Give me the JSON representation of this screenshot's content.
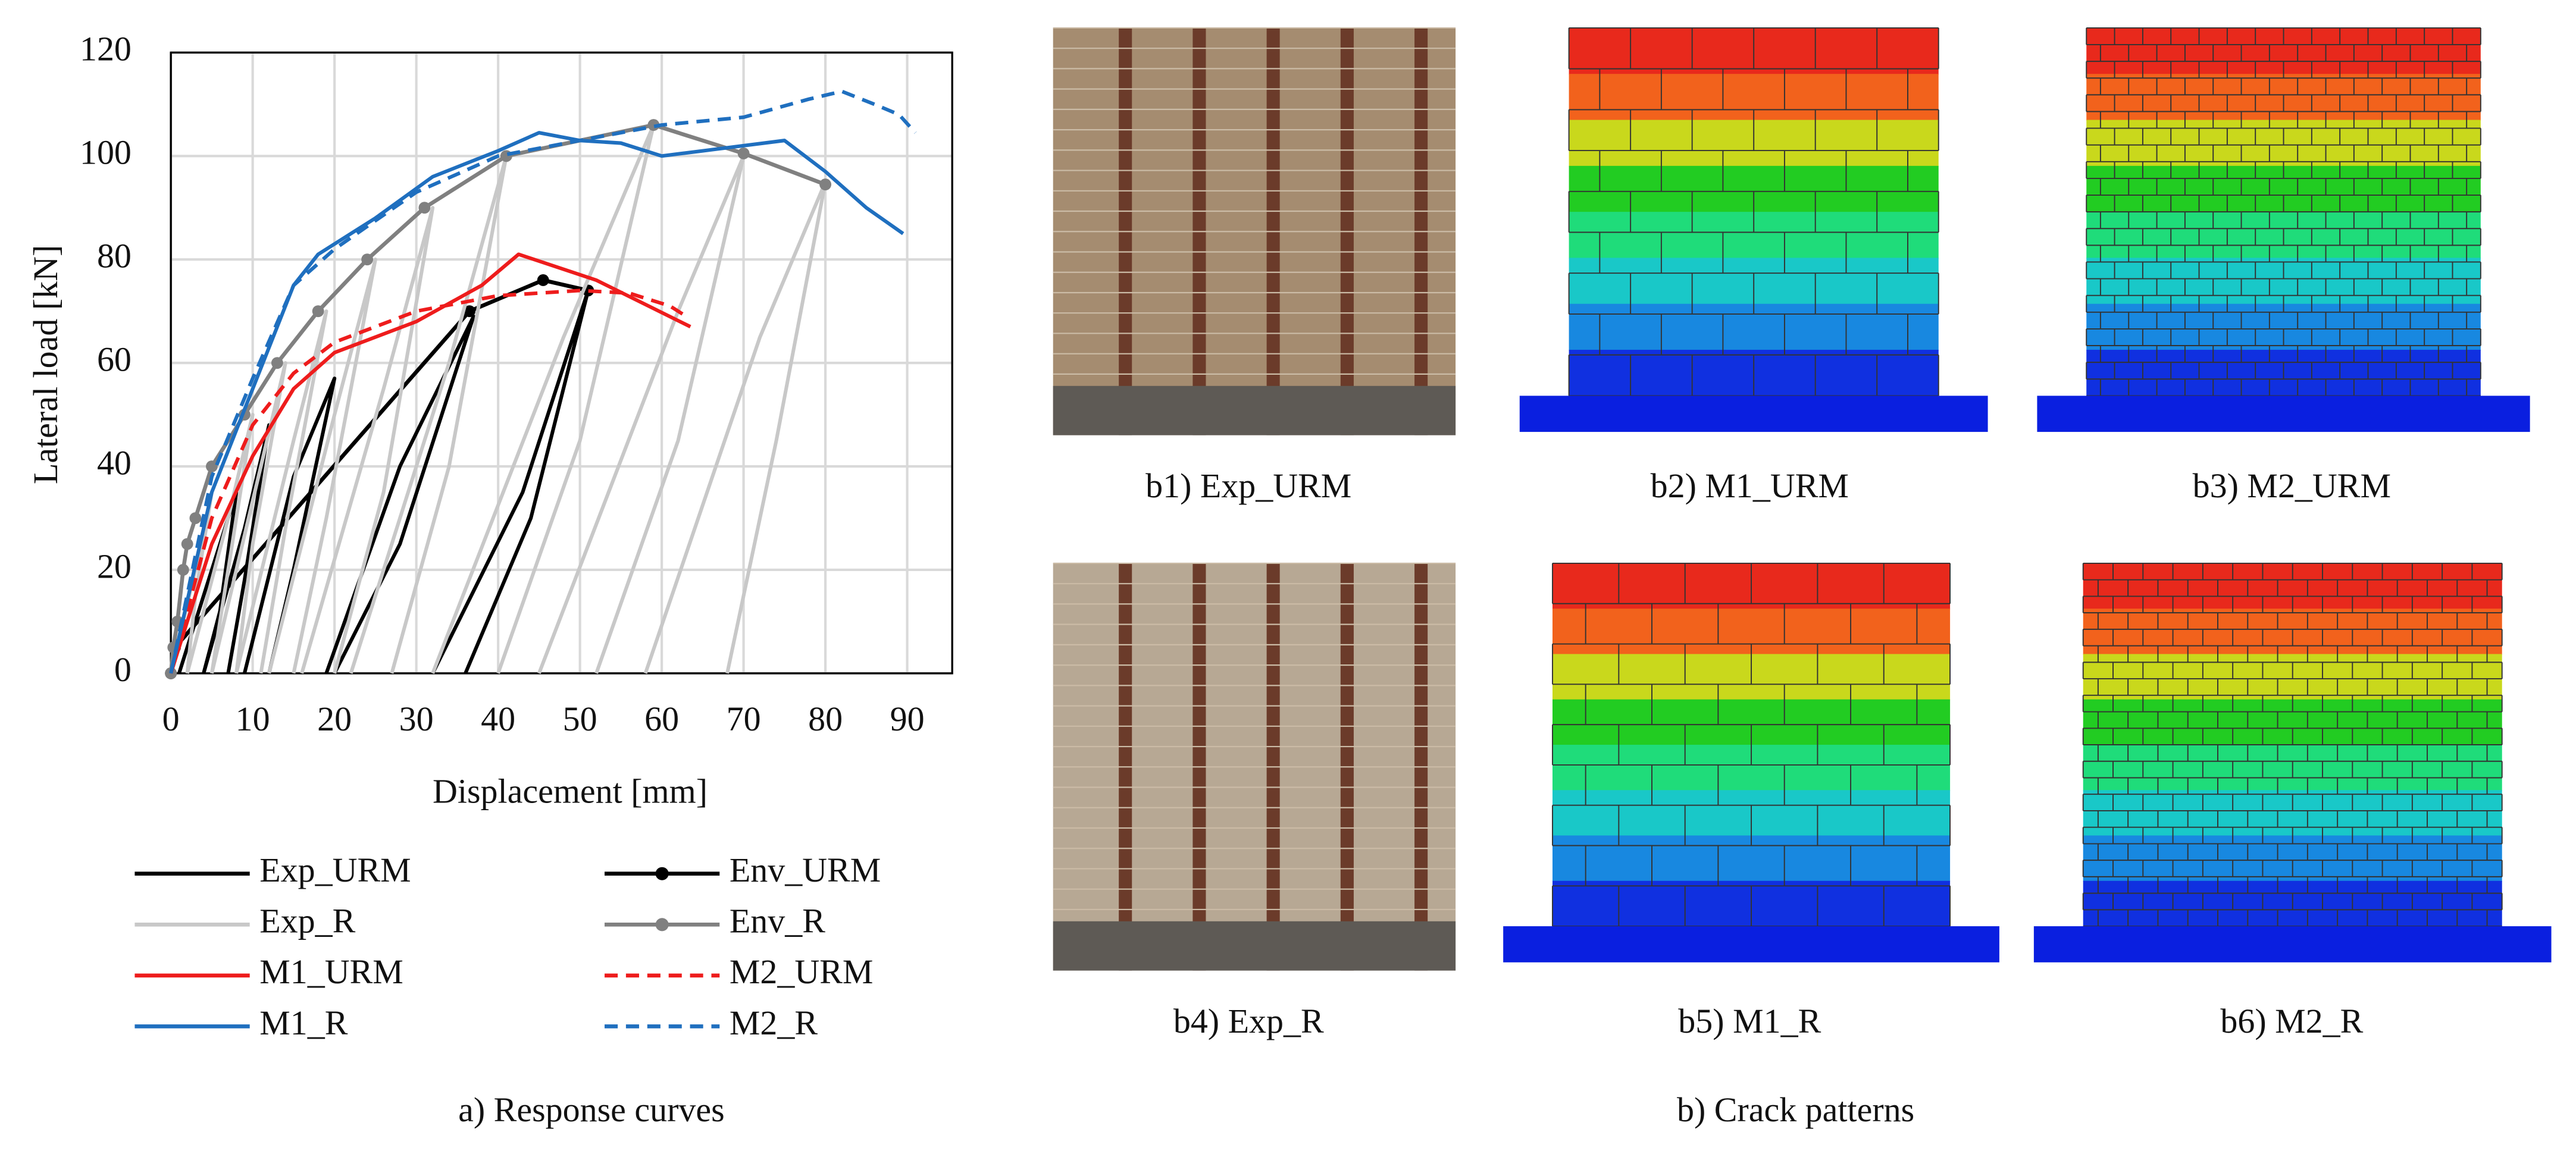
{
  "chart_data": {
    "type": "line",
    "xlabel": "Displacement [mm]",
    "ylabel": "Lateral load [kN]",
    "caption": "a) Response curves",
    "xlim": [
      0,
      95.5
    ],
    "ylim": [
      0,
      120
    ],
    "xticks": [
      0,
      10,
      20,
      30,
      40,
      50,
      60,
      70,
      80,
      90
    ],
    "yticks": [
      0,
      20,
      40,
      60,
      80,
      100,
      120
    ],
    "grid": true,
    "series": [
      {
        "name": "Exp_URM",
        "color": "#000000",
        "linestyle": "solid",
        "x": [
          1,
          5,
          8,
          6,
          4,
          null,
          4,
          9,
          12,
          9,
          7,
          null,
          9,
          15,
          20,
          15,
          12,
          null,
          19,
          28,
          37,
          28,
          20,
          null,
          32,
          43,
          51,
          44,
          36
        ],
        "values": [
          0,
          20,
          35,
          12,
          0,
          null,
          0,
          28,
          48,
          18,
          0,
          null,
          0,
          38,
          57,
          20,
          0,
          null,
          0,
          40,
          69,
          25,
          0,
          null,
          0,
          35,
          74,
          30,
          0
        ]
      },
      {
        "name": "Env_URM",
        "color": "#000000",
        "linestyle": "solid",
        "marker": "circle",
        "x": [
          0,
          0.5,
          36.5,
          45.5,
          51
        ],
        "values": [
          0,
          5,
          70,
          76,
          74
        ]
      },
      {
        "name": "Exp_R",
        "color": "#c8c8c8",
        "linestyle": "solid",
        "x": [
          0,
          3,
          5,
          3,
          2,
          null,
          2,
          7,
          10,
          7,
          5,
          null,
          5,
          11,
          14,
          10,
          8,
          null,
          8,
          15,
          19,
          14,
          11,
          null,
          12,
          20,
          25,
          19,
          15,
          null,
          16,
          26,
          32,
          26,
          20,
          null,
          22,
          34,
          41,
          34,
          27,
          null,
          32,
          48,
          59,
          50,
          40,
          null,
          45,
          62,
          70,
          62,
          52,
          null,
          58,
          72,
          80,
          74,
          68
        ],
        "values": [
          0,
          20,
          35,
          15,
          0,
          null,
          0,
          30,
          50,
          20,
          0,
          null,
          0,
          40,
          60,
          25,
          0,
          null,
          0,
          45,
          70,
          28,
          0,
          null,
          0,
          50,
          80,
          30,
          0,
          null,
          0,
          55,
          90,
          35,
          0,
          null,
          0,
          60,
          100,
          40,
          0,
          null,
          0,
          65,
          106,
          45,
          0,
          null,
          0,
          70,
          100,
          45,
          0,
          null,
          0,
          65,
          95,
          45,
          0
        ]
      },
      {
        "name": "Env_R",
        "color": "#808080",
        "linestyle": "solid",
        "marker": "circle",
        "x": [
          0,
          0.3,
          0.8,
          1.5,
          2,
          3,
          5,
          9,
          13,
          18,
          24,
          31,
          41,
          59,
          70,
          80
        ],
        "values": [
          0,
          5,
          10,
          20,
          25,
          30,
          40,
          50,
          60,
          70,
          80,
          90,
          100,
          106,
          100.5,
          94.5
        ]
      },
      {
        "name": "M1_URM",
        "color": "#ee1c1c",
        "linestyle": "solid",
        "x": [
          0,
          5,
          10,
          15,
          20,
          30,
          38,
          42.5,
          52,
          63.5
        ],
        "values": [
          0,
          25,
          42,
          55,
          62,
          68,
          75,
          81,
          76,
          67
        ]
      },
      {
        "name": "M2_URM",
        "color": "#ee1c1c",
        "linestyle": "dashed",
        "x": [
          0,
          5,
          10,
          15,
          20,
          30,
          40,
          50,
          56,
          61,
          63
        ],
        "values": [
          0,
          30,
          48,
          58,
          64,
          70,
          73,
          74,
          73.5,
          71,
          69
        ]
      },
      {
        "name": "M1_R",
        "color": "#1f6fbf",
        "linestyle": "solid",
        "x": [
          0,
          5,
          10,
          15,
          18,
          25,
          32,
          40,
          45,
          50,
          55,
          60,
          65,
          70,
          75,
          80,
          85,
          89.5
        ],
        "values": [
          0,
          35,
          55,
          75,
          81,
          88,
          96,
          101,
          104.5,
          103,
          102.5,
          100,
          101,
          102,
          103,
          97,
          90,
          85
        ]
      },
      {
        "name": "M2_R",
        "color": "#1f6fbf",
        "linestyle": "dashed",
        "x": [
          0,
          5,
          10,
          15,
          20,
          30,
          40,
          50,
          60,
          70,
          78,
          82,
          86,
          89,
          91
        ],
        "values": [
          0,
          38,
          57,
          75,
          82,
          93,
          100,
          103,
          106,
          107.5,
          111,
          112.5,
          110,
          108,
          104.5
        ]
      }
    ]
  },
  "panels": {
    "caption": "b) Crack patterns",
    "items": [
      {
        "label": "b1) Exp_URM"
      },
      {
        "label": "b2) M1_URM"
      },
      {
        "label": "b3) M2_URM"
      },
      {
        "label": "b4) Exp_R"
      },
      {
        "label": "b5) M1_R"
      },
      {
        "label": "b6) M2_R"
      }
    ]
  }
}
